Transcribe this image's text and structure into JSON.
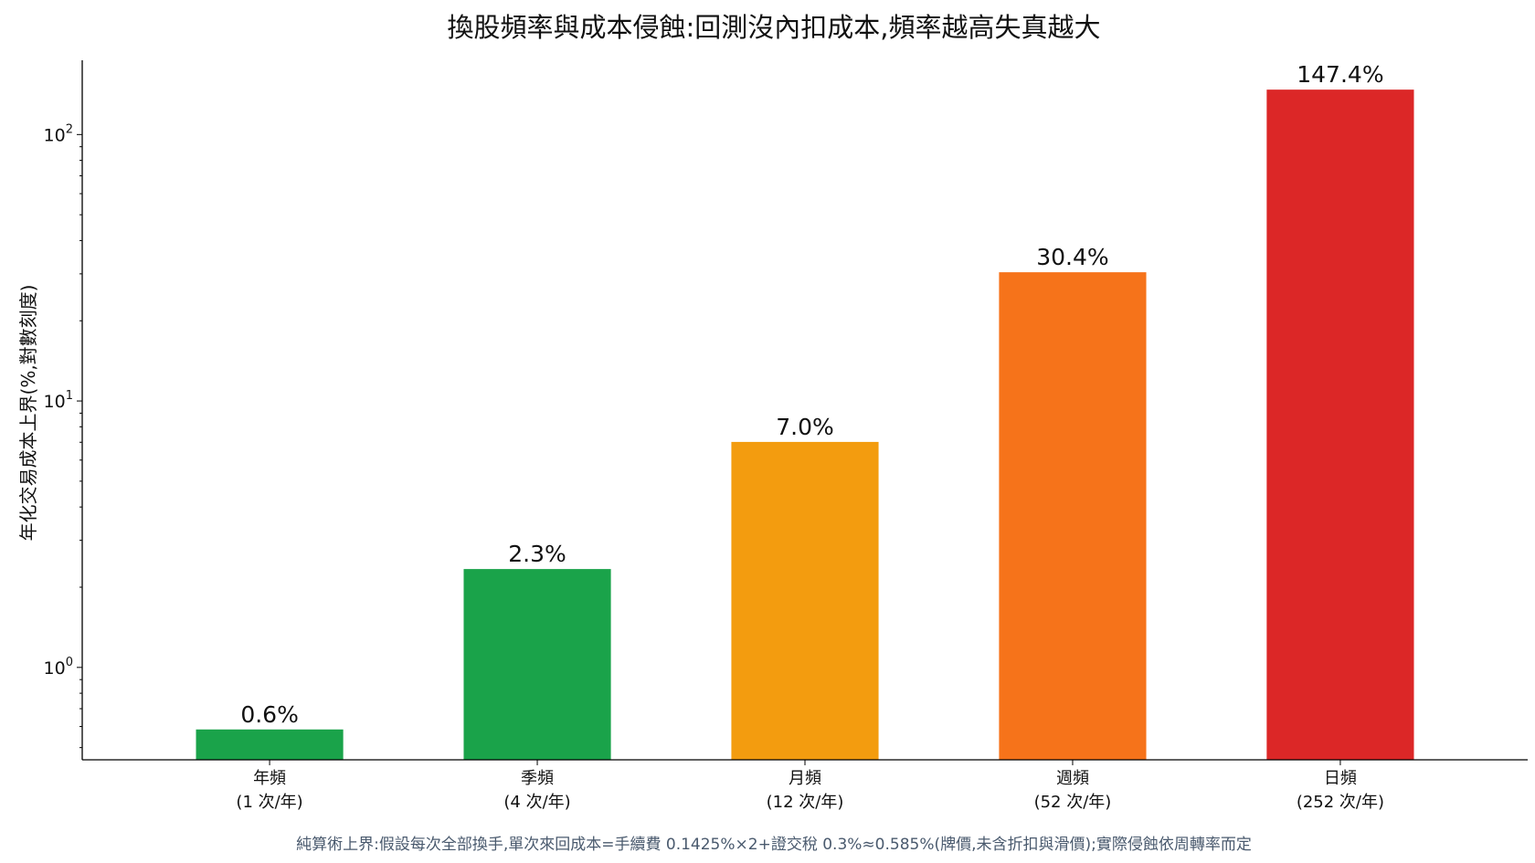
{
  "chart_data": {
    "type": "bar",
    "title": "換股頻率與成本侵蝕:回測沒內扣成本,頻率越高失真越大",
    "ylabel": "年化交易成本上界(%,對數刻度)",
    "xlabel": "",
    "yscale": "log",
    "ylim": [
      0.45,
      190
    ],
    "yticks": [
      {
        "value": 1,
        "base": "10",
        "exp": "0"
      },
      {
        "value": 10,
        "base": "10",
        "exp": "1"
      },
      {
        "value": 100,
        "base": "10",
        "exp": "2"
      }
    ],
    "categories": [
      {
        "name": "年頻",
        "sub": "(1 次/年)"
      },
      {
        "name": "季頻",
        "sub": "(4 次/年)"
      },
      {
        "name": "月頻",
        "sub": "(12 次/年)"
      },
      {
        "name": "週頻",
        "sub": "(52 次/年)"
      },
      {
        "name": "日頻",
        "sub": "(252 次/年)"
      }
    ],
    "values": [
      0.585,
      2.34,
      7.02,
      30.42,
      147.42
    ],
    "labels": [
      "0.6%",
      "2.3%",
      "7.0%",
      "30.4%",
      "147.4%"
    ],
    "colors": [
      "#1aa34a",
      "#1aa34a",
      "#f39c0f",
      "#f6731a",
      "#dc2727"
    ],
    "footnote": "純算術上界:假設每次全部換手,單次來回成本=手續費 0.1425%×2+證交稅 0.3%≈0.585%(牌價,未含折扣與滑價);實際侵蝕依周轉率而定",
    "footnote_color": "#4a5a6e",
    "grid": false,
    "legend": "none"
  }
}
